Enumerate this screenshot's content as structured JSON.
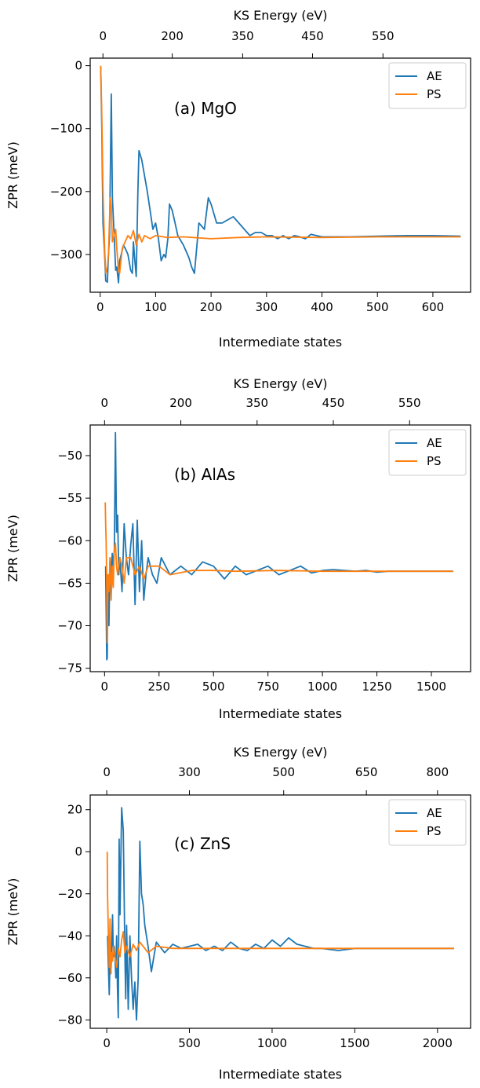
{
  "colors": {
    "AE": "#1f77b4",
    "PS": "#ff7f0e"
  },
  "chart_data": [
    {
      "type": "line",
      "annotation": "(a) MgO",
      "xlabel": "Intermediate states",
      "ylabel": "ZPR (meV)",
      "top_xlabel": "KS Energy (eV)",
      "xlim": [
        -18,
        668
      ],
      "ylim": [
        -360,
        12
      ],
      "xticks": [
        0,
        100,
        200,
        300,
        400,
        500,
        600
      ],
      "yticks": [
        0,
        -100,
        -200,
        -300
      ],
      "top_ticks": [
        {
          "at": 5,
          "label": "0"
        },
        {
          "at": 130,
          "label": "200"
        },
        {
          "at": 257,
          "label": "350"
        },
        {
          "at": 383,
          "label": "450"
        },
        {
          "at": 510,
          "label": "550"
        }
      ],
      "legend": "top-right",
      "grid": false,
      "series": [
        {
          "name": "AE",
          "x": [
            1,
            3,
            5,
            8,
            10,
            13,
            15,
            17,
            20,
            22,
            25,
            28,
            30,
            33,
            35,
            38,
            42,
            45,
            50,
            55,
            58,
            60,
            62,
            65,
            68,
            70,
            75,
            80,
            85,
            90,
            95,
            100,
            105,
            110,
            115,
            118,
            120,
            122,
            125,
            130,
            135,
            140,
            150,
            160,
            165,
            170,
            178,
            183,
            188,
            195,
            200,
            210,
            220,
            230,
            240,
            250,
            260,
            270,
            280,
            290,
            300,
            310,
            320,
            330,
            340,
            350,
            360,
            370,
            380,
            390,
            400,
            450,
            500,
            550,
            600,
            650
          ],
          "y": [
            -2,
            -100,
            -250,
            -300,
            -342,
            -344,
            -300,
            -270,
            -45,
            -210,
            -265,
            -325,
            -320,
            -345,
            -310,
            -300,
            -285,
            -290,
            -300,
            -325,
            -330,
            -280,
            -305,
            -335,
            -200,
            -135,
            -150,
            -175,
            -200,
            -230,
            -260,
            -250,
            -275,
            -310,
            -300,
            -305,
            -290,
            -275,
            -220,
            -230,
            -250,
            -270,
            -285,
            -305,
            -320,
            -330,
            -250,
            -255,
            -260,
            -210,
            -220,
            -250,
            -250,
            -245,
            -240,
            -250,
            -260,
            -270,
            -265,
            -265,
            -270,
            -270,
            -275,
            -270,
            -275,
            -270,
            -272,
            -275,
            -268,
            -270,
            -272,
            -272,
            -271,
            -270,
            -270,
            -271
          ]
        },
        {
          "name": "PS",
          "x": [
            1,
            3,
            5,
            8,
            10,
            13,
            15,
            18,
            20,
            22,
            25,
            28,
            30,
            33,
            35,
            38,
            40,
            45,
            50,
            55,
            60,
            65,
            70,
            75,
            80,
            90,
            100,
            120,
            150,
            200,
            250,
            300,
            400,
            500,
            600,
            650
          ],
          "y": [
            0,
            -80,
            -200,
            -290,
            -330,
            -320,
            -300,
            -210,
            -225,
            -280,
            -270,
            -260,
            -290,
            -325,
            -330,
            -305,
            -290,
            -280,
            -270,
            -275,
            -262,
            -285,
            -268,
            -280,
            -270,
            -275,
            -270,
            -273,
            -272,
            -275,
            -273,
            -272,
            -273,
            -272,
            -272,
            -272
          ]
        }
      ]
    },
    {
      "type": "line",
      "annotation": "(b) AlAs",
      "xlabel": "Intermediate states",
      "ylabel": "ZPR (meV)",
      "top_xlabel": "KS Energy (eV)",
      "xlim": [
        -66,
        1680
      ],
      "ylim": [
        -75.4,
        -46.4
      ],
      "xticks": [
        0,
        250,
        500,
        750,
        1000,
        1250,
        1500
      ],
      "yticks": [
        -50,
        -55,
        -60,
        -65,
        -70,
        -75
      ],
      "top_ticks": [
        {
          "at": 0,
          "label": "0"
        },
        {
          "at": 350,
          "label": "200"
        },
        {
          "at": 700,
          "label": "350"
        },
        {
          "at": 1050,
          "label": "450"
        },
        {
          "at": 1400,
          "label": "550"
        }
      ],
      "legend": "top-right",
      "grid": false,
      "series": [
        {
          "name": "AE",
          "x": [
            5,
            10,
            12,
            15,
            18,
            20,
            25,
            30,
            35,
            40,
            45,
            50,
            55,
            60,
            65,
            70,
            80,
            90,
            100,
            110,
            120,
            130,
            140,
            150,
            160,
            170,
            180,
            190,
            200,
            220,
            240,
            260,
            280,
            300,
            350,
            400,
            450,
            500,
            550,
            600,
            650,
            700,
            750,
            800,
            850,
            900,
            950,
            1000,
            1050,
            1100,
            1150,
            1200,
            1250,
            1300,
            1400,
            1500,
            1600
          ],
          "y": [
            -63,
            -74,
            -73.8,
            -64,
            -65,
            -70,
            -62,
            -64,
            -61.5,
            -63,
            -61,
            -47.3,
            -59,
            -57,
            -64,
            -62,
            -66,
            -58,
            -62,
            -64,
            -60.5,
            -58,
            -67.5,
            -57.6,
            -66,
            -60,
            -67,
            -64,
            -62,
            -64,
            -65,
            -62,
            -63,
            -64,
            -63,
            -64,
            -62.5,
            -63,
            -64.5,
            -63,
            -64,
            -63.5,
            -63,
            -64,
            -63.5,
            -63,
            -63.8,
            -63.5,
            -63.4,
            -63.5,
            -63.6,
            -63.5,
            -63.7,
            -63.6,
            -63.6,
            -63.6,
            -63.6
          ]
        },
        {
          "name": "PS",
          "x": [
            3,
            5,
            7,
            10,
            12,
            14,
            16,
            18,
            20,
            25,
            30,
            35,
            40,
            45,
            50,
            55,
            60,
            70,
            80,
            90,
            100,
            120,
            140,
            160,
            180,
            200,
            250,
            300,
            400,
            500,
            600,
            800,
            1000,
            1200,
            1400,
            1600
          ],
          "y": [
            -55.5,
            -58,
            -60,
            -65,
            -72,
            -68,
            -64,
            -65,
            -66,
            -62,
            -67,
            -63,
            -65.5,
            -61,
            -60.3,
            -63,
            -64,
            -62,
            -63,
            -65,
            -62,
            -62,
            -64,
            -63,
            -64.5,
            -63,
            -63,
            -64,
            -63.5,
            -63.5,
            -63.6,
            -63.5,
            -63.6,
            -63.6,
            -63.6,
            -63.6
          ]
        }
      ]
    },
    {
      "type": "line",
      "annotation": "(c) ZnS",
      "xlabel": "Intermediate states",
      "ylabel": "ZPR (meV)",
      "top_xlabel": "KS Energy (eV)",
      "xlim": [
        -100,
        2200
      ],
      "ylim": [
        -84,
        27
      ],
      "xticks": [
        0,
        500,
        1000,
        1500,
        2000
      ],
      "yticks": [
        20,
        0,
        -20,
        -40,
        -60,
        -80
      ],
      "top_ticks": [
        {
          "at": 0,
          "label": "0"
        },
        {
          "at": 500,
          "label": "300"
        },
        {
          "at": 1070,
          "label": "500"
        },
        {
          "at": 1570,
          "label": "650"
        },
        {
          "at": 2000,
          "label": "800"
        }
      ],
      "legend": "top-right",
      "grid": false,
      "series": [
        {
          "name": "AE",
          "x": [
            5,
            15,
            20,
            25,
            30,
            35,
            40,
            45,
            50,
            55,
            60,
            65,
            70,
            75,
            80,
            90,
            100,
            110,
            115,
            120,
            130,
            140,
            150,
            160,
            170,
            180,
            190,
            200,
            210,
            220,
            230,
            250,
            270,
            300,
            350,
            400,
            450,
            500,
            550,
            600,
            650,
            700,
            750,
            800,
            850,
            900,
            950,
            1000,
            1050,
            1100,
            1150,
            1200,
            1250,
            1300,
            1400,
            1500,
            1600,
            1800,
            2000,
            2100
          ],
          "y": [
            -40,
            -68,
            -50,
            -58,
            -45,
            -30,
            -50,
            -45,
            -50,
            -60,
            -40,
            -65,
            -79,
            6,
            -30,
            21,
            10,
            -50,
            -70,
            -35,
            -75,
            -40,
            -60,
            -75,
            -62,
            -80,
            -60,
            5,
            -20,
            -25,
            -35,
            -45,
            -57,
            -43,
            -48,
            -44,
            -46,
            -45,
            -44,
            -47,
            -45,
            -47,
            -43,
            -46,
            -47,
            -44,
            -46,
            -42,
            -45,
            -41,
            -44,
            -45,
            -46,
            -46,
            -47,
            -46,
            -46,
            -46,
            -46,
            -46
          ]
        },
        {
          "name": "PS",
          "x": [
            3,
            5,
            10,
            15,
            20,
            25,
            30,
            35,
            40,
            50,
            60,
            70,
            80,
            90,
            100,
            110,
            120,
            140,
            160,
            180,
            200,
            250,
            300,
            400,
            500,
            750,
            1000,
            1250,
            1500,
            1750,
            2000,
            2100
          ],
          "y": [
            0,
            -20,
            -40,
            -55,
            -32,
            -58,
            -48,
            -52,
            -45,
            -50,
            -55,
            -46,
            -50,
            -42,
            -38,
            -48,
            -45,
            -50,
            -44,
            -47,
            -43,
            -48,
            -45,
            -46,
            -46,
            -46,
            -46,
            -46,
            -46,
            -46,
            -46,
            -46
          ]
        }
      ]
    }
  ]
}
